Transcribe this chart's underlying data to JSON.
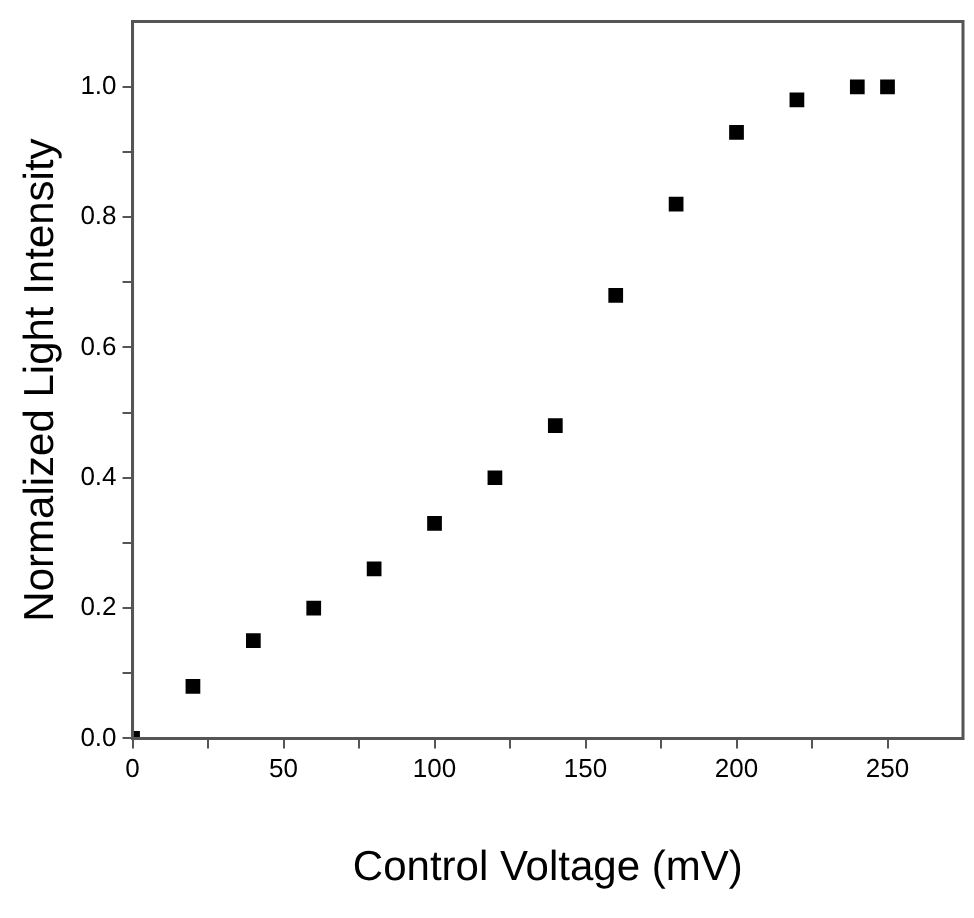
{
  "chart_data": {
    "type": "scatter",
    "xlabel": "Control Voltage (mV)",
    "ylabel": "Normalized Light Intensity",
    "x": [
      0,
      20,
      40,
      60,
      80,
      100,
      120,
      140,
      160,
      180,
      200,
      220,
      240,
      250
    ],
    "values": [
      0,
      0.08,
      0.15,
      0.2,
      0.26,
      0.33,
      0.4,
      0.48,
      0.68,
      0.82,
      0.93,
      0.98,
      1.0,
      1.0
    ],
    "color": "#000000",
    "marker": "square",
    "xlim": [
      0,
      275
    ],
    "xticks": [
      0,
      {
        "value": 25,
        "label": null
      },
      50,
      {
        "value": 75,
        "label": null
      },
      100,
      {
        "value": 125,
        "label": null
      },
      150,
      {
        "value": 175,
        "label": null
      },
      200,
      {
        "value": 225,
        "label": null
      },
      250
    ],
    "ylim": [
      0,
      1.1
    ],
    "yticks": [
      {
        "value": 0,
        "label": "0.0"
      },
      {
        "value": 0.1,
        "label": null
      },
      0.2,
      {
        "value": 0.3,
        "label": null
      },
      0.4,
      {
        "value": 0.5,
        "label": null
      },
      0.6,
      {
        "value": 0.7,
        "label": null
      },
      0.8,
      {
        "value": 0.9,
        "label": null
      },
      {
        "value": 1,
        "label": "1.0"
      }
    ],
    "grid": false,
    "legend": false
  }
}
